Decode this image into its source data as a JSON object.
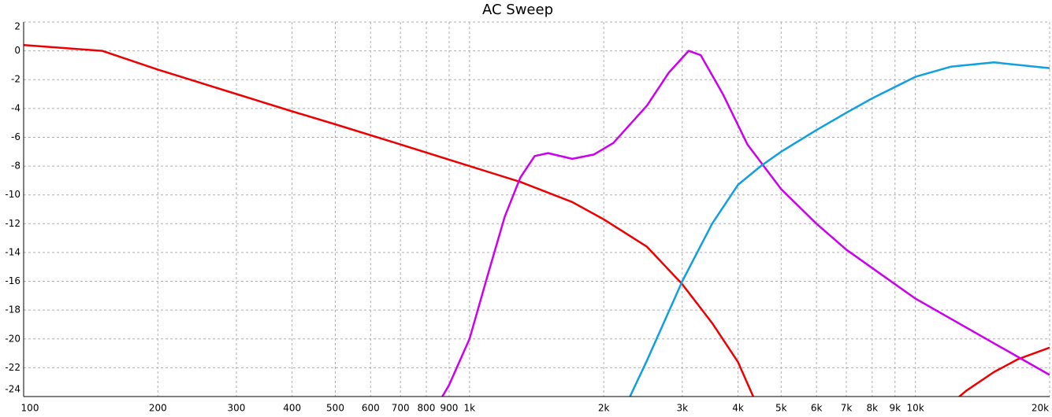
{
  "chart_data": {
    "type": "line",
    "title": "AC Sweep",
    "xscale": "log",
    "grid": true,
    "xlim": [
      100,
      20000
    ],
    "ylim": [
      -24,
      2
    ],
    "xticks": [
      100,
      200,
      300,
      400,
      500,
      600,
      700,
      800,
      900,
      {
        "value": 1000,
        "label": "1k"
      },
      {
        "value": 2000,
        "label": "2k"
      },
      {
        "value": 3000,
        "label": "3k"
      },
      {
        "value": 4000,
        "label": "4k"
      },
      {
        "value": 5000,
        "label": "5k"
      },
      {
        "value": 6000,
        "label": "6k"
      },
      {
        "value": 7000,
        "label": "7k"
      },
      {
        "value": 8000,
        "label": "8k"
      },
      {
        "value": 9000,
        "label": "9k"
      },
      {
        "value": 10000,
        "label": "10k"
      },
      {
        "value": 20000,
        "label": "20k"
      }
    ],
    "yticks": [
      -24,
      -22,
      -20,
      -18,
      -16,
      -14,
      -12,
      -10,
      -8,
      -6,
      -4,
      -2,
      0,
      2
    ],
    "series": [
      {
        "color": "#ee0000",
        "x": [
          100,
          150,
          200,
          300,
          400,
          500,
          700,
          1000,
          1300,
          1700,
          2000,
          2500,
          3000,
          3500,
          4000,
          4400,
          null,
          12000,
          13000,
          15000,
          17000,
          20000
        ],
        "values": [
          0.4,
          0,
          -1.3,
          -3,
          -4.2,
          -5.1,
          -6.5,
          -8,
          -9.1,
          -10.5,
          -11.7,
          -13.6,
          -16.2,
          -18.9,
          -21.6,
          -24.5,
          null,
          -24.5,
          -23.6,
          -22.3,
          -21.4,
          -20.6
        ]
      },
      {
        "color": "#cc00ee",
        "x": [
          850,
          900,
          1000,
          1100,
          1200,
          1300,
          1400,
          1500,
          1700,
          1900,
          2100,
          2500,
          2800,
          3100,
          3300,
          3700,
          4200,
          5000,
          6000,
          7000,
          9000,
          10000,
          15000,
          20000
        ],
        "values": [
          -24.5,
          -23.2,
          -20,
          -15.5,
          -11.5,
          -8.8,
          -7.3,
          -7.1,
          -7.5,
          -7.2,
          -6.4,
          -3.8,
          -1.5,
          0,
          -0.3,
          -3,
          -6.5,
          -9.6,
          -12,
          -13.8,
          -16.2,
          -17.2,
          -20.3,
          -22.5
        ]
      },
      {
        "color": "#10a0e0",
        "x": [
          2250,
          2500,
          3000,
          3500,
          4000,
          4500,
          5000,
          6000,
          7000,
          8000,
          10000,
          12000,
          15000,
          20000
        ],
        "values": [
          -24.5,
          -21.5,
          -16,
          -12,
          -9.3,
          -8,
          -7,
          -5.5,
          -4.3,
          -3.3,
          -1.8,
          -1.1,
          -0.8,
          -1.2
        ]
      }
    ]
  }
}
